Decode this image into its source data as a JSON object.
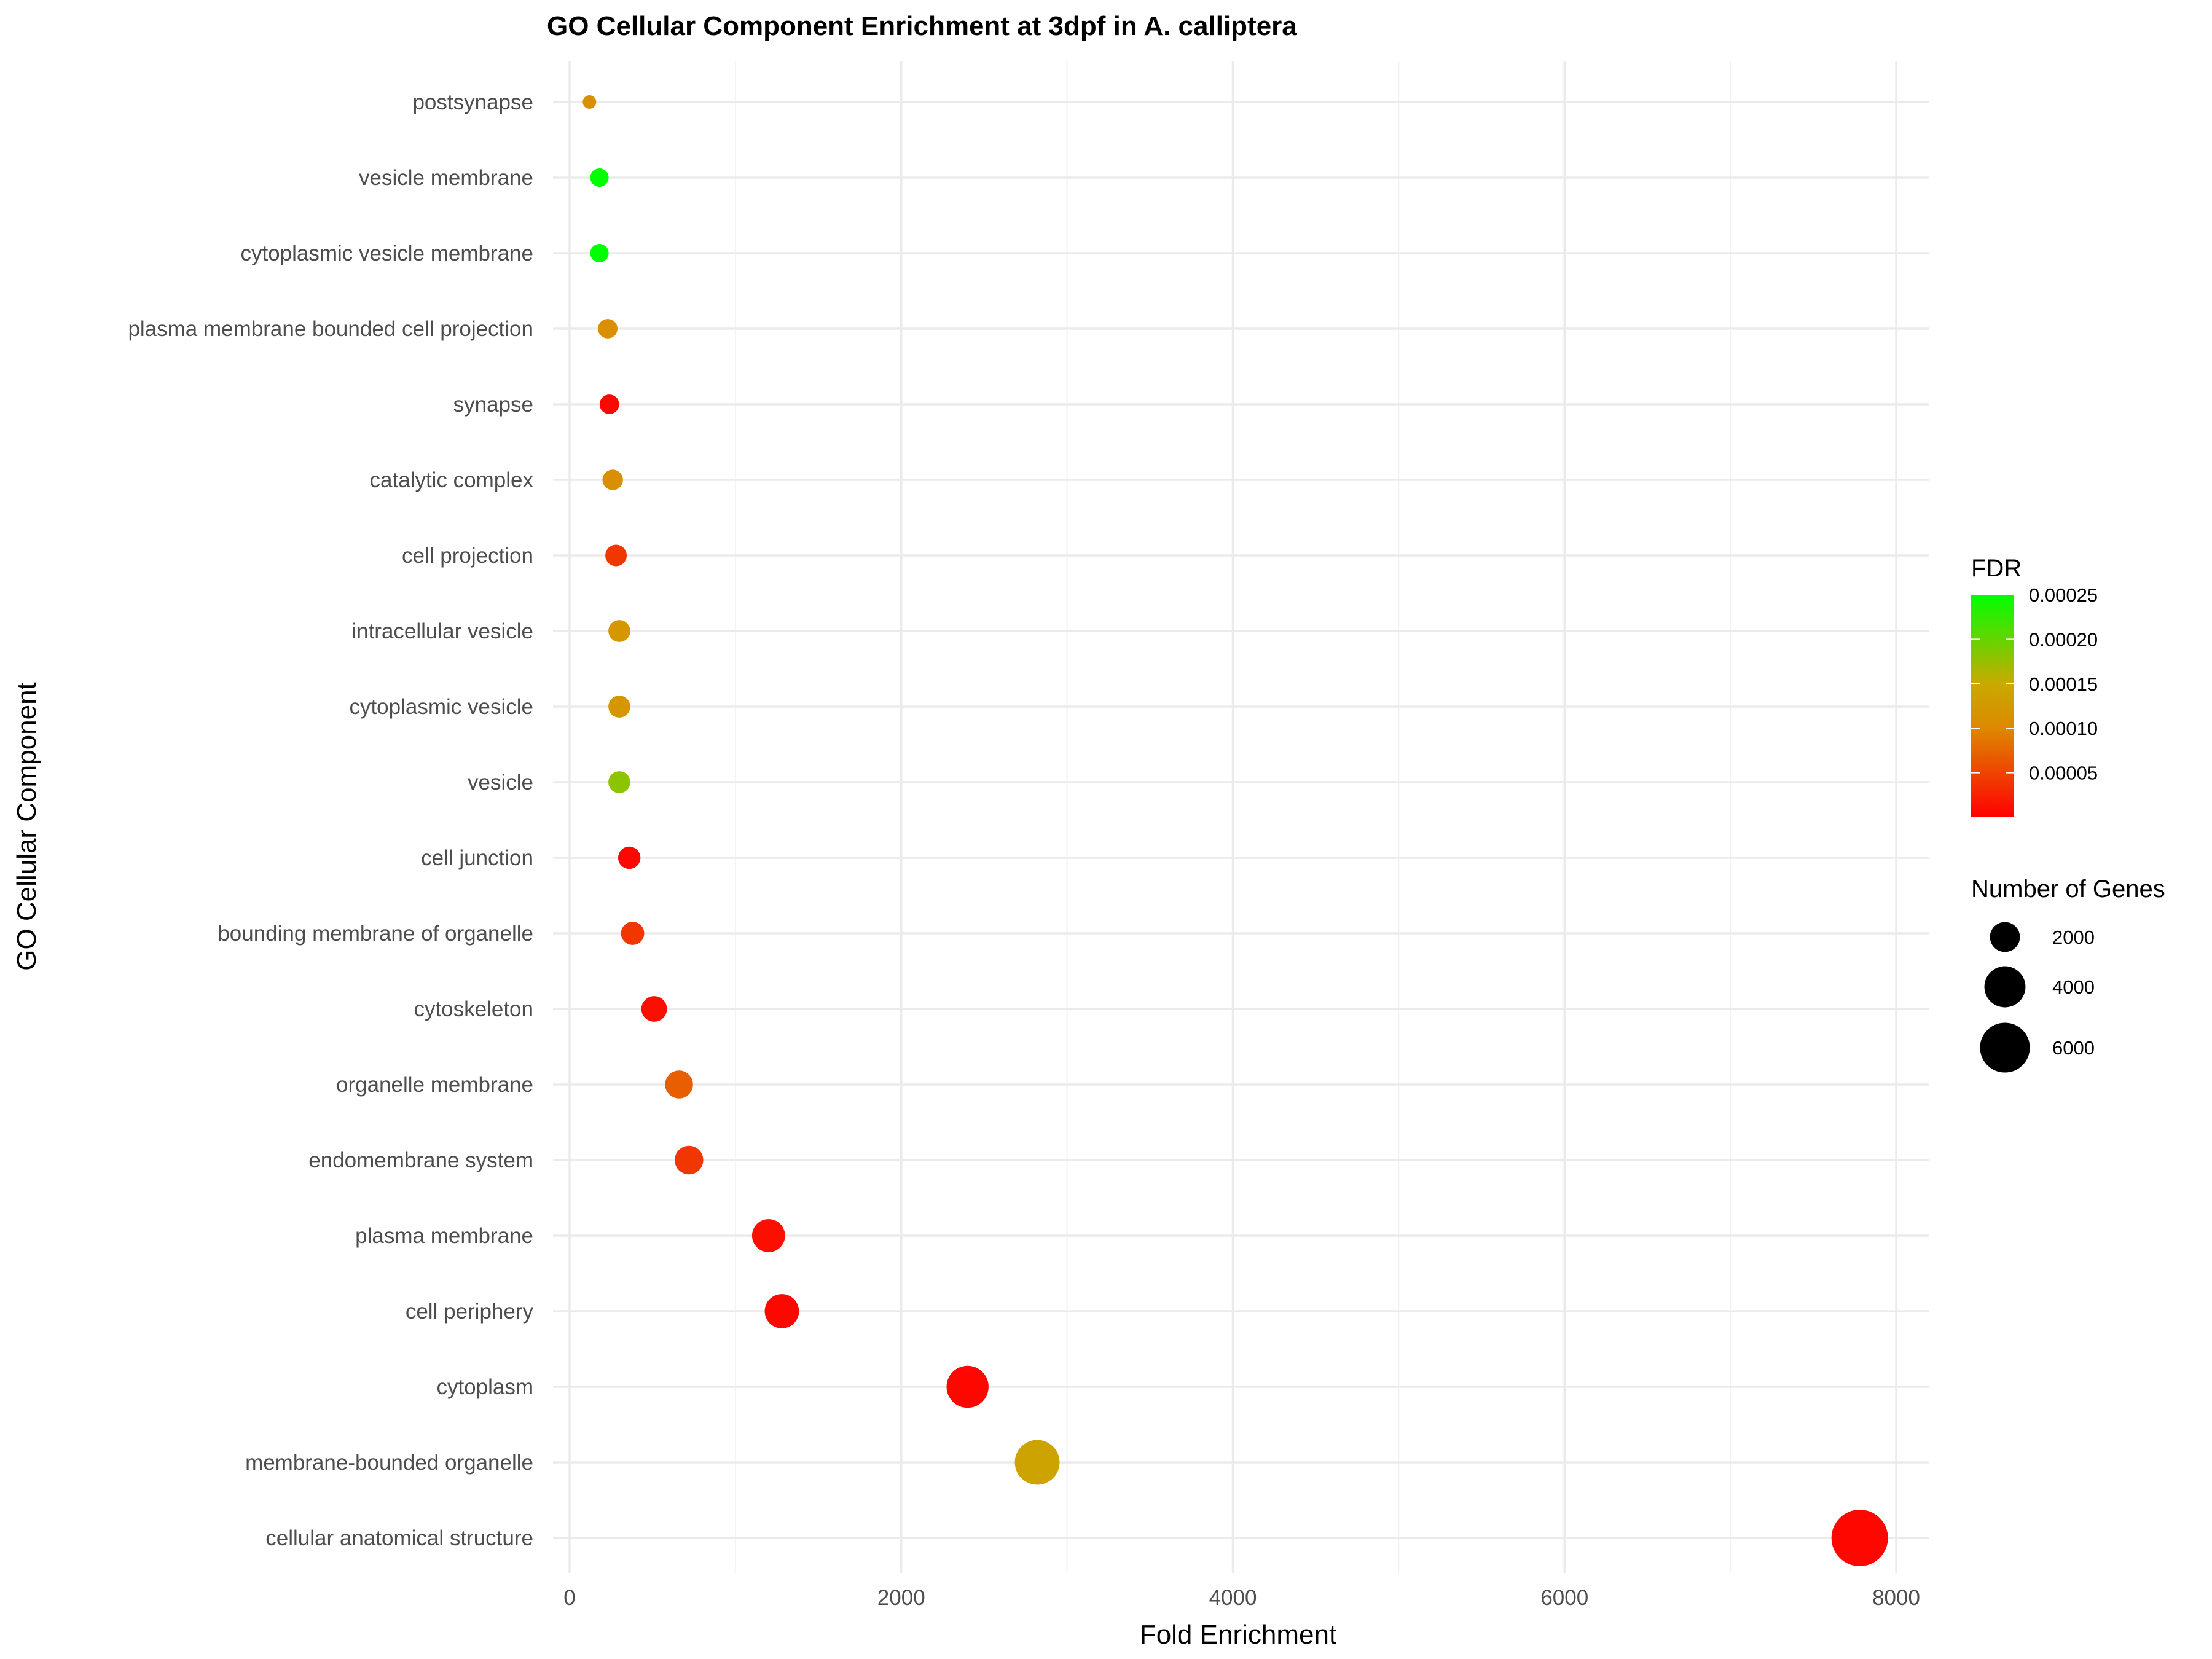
{
  "chart_data": {
    "type": "scatter",
    "title": "GO Cellular Component Enrichment at 3dpf in A. calliptera",
    "xlabel": "Fold Enrichment",
    "ylabel": "GO Cellular Component",
    "xlim": [
      -100,
      8200
    ],
    "x_ticks": [
      0,
      2000,
      4000,
      6000,
      8000
    ],
    "grid": true,
    "color_legend": {
      "title": "FDR",
      "range": [
        0,
        0.00025
      ],
      "ticks": [
        5e-05,
        0.0001,
        0.00015,
        0.0002,
        0.00025
      ],
      "tick_labels": [
        "0.00005",
        "0.00010",
        "0.00015",
        "0.00020",
        "0.00025"
      ],
      "low_color": "#ff0000",
      "high_color": "#00ff00",
      "placement": "right"
    },
    "size_legend": {
      "title": "Number of Genes",
      "values": [
        2000,
        4000,
        6000
      ],
      "labels": [
        "2000",
        "4000",
        "6000"
      ],
      "range": [
        200,
        7800
      ],
      "placement": "right"
    },
    "points": [
      {
        "term": "postsynapse",
        "fold": 120,
        "fdr": 0.00011,
        "genes": 200
      },
      {
        "term": "vesicle membrane",
        "fold": 180,
        "fdr": 0.00025,
        "genes": 600
      },
      {
        "term": "cytoplasmic vesicle membrane",
        "fold": 180,
        "fdr": 0.00025,
        "genes": 600
      },
      {
        "term": "plasma membrane bounded cell projection",
        "fold": 230,
        "fdr": 0.00011,
        "genes": 700
      },
      {
        "term": "synapse",
        "fold": 240,
        "fdr": 5e-06,
        "genes": 700
      },
      {
        "term": "catalytic complex",
        "fold": 260,
        "fdr": 0.00011,
        "genes": 800
      },
      {
        "term": "cell projection",
        "fold": 280,
        "fdr": 4e-05,
        "genes": 900
      },
      {
        "term": "intracellular vesicle",
        "fold": 300,
        "fdr": 0.00012,
        "genes": 950
      },
      {
        "term": "cytoplasmic vesicle",
        "fold": 300,
        "fdr": 0.00012,
        "genes": 950
      },
      {
        "term": "vesicle",
        "fold": 300,
        "fdr": 0.00018,
        "genes": 950
      },
      {
        "term": "cell junction",
        "fold": 360,
        "fdr": 5e-06,
        "genes": 1000
      },
      {
        "term": "bounding membrane of organelle",
        "fold": 380,
        "fdr": 4e-05,
        "genes": 1100
      },
      {
        "term": "cytoskeleton",
        "fold": 510,
        "fdr": 1e-05,
        "genes": 1400
      },
      {
        "term": "organelle membrane",
        "fold": 660,
        "fdr": 7e-05,
        "genes": 1700
      },
      {
        "term": "endomembrane system",
        "fold": 720,
        "fdr": 4e-05,
        "genes": 1800
      },
      {
        "term": "plasma membrane",
        "fold": 1200,
        "fdr": 1e-05,
        "genes": 2500
      },
      {
        "term": "cell periphery",
        "fold": 1280,
        "fdr": 5e-06,
        "genes": 2700
      },
      {
        "term": "cytoplasm",
        "fold": 2400,
        "fdr": 5e-06,
        "genes": 4200
      },
      {
        "term": "membrane-bounded organelle",
        "fold": 2820,
        "fdr": 0.00014,
        "genes": 4800
      },
      {
        "term": "cellular anatomical structure",
        "fold": 7780,
        "fdr": 5e-06,
        "genes": 7800
      }
    ]
  }
}
